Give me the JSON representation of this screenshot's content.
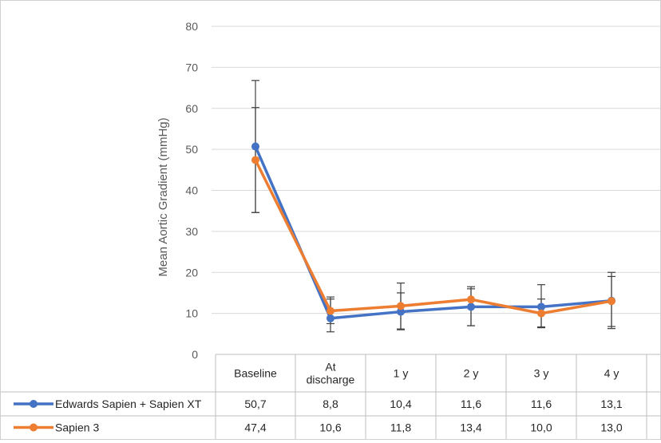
{
  "chart_data": {
    "type": "line",
    "title": "",
    "ylabel": "Mean Aortic Gradient (mmHg)",
    "xlabel": "",
    "ylim": [
      0,
      80
    ],
    "yticks": [
      0,
      10,
      20,
      30,
      40,
      50,
      60,
      70,
      80
    ],
    "grid": true,
    "legend": "data-table-left",
    "categories": [
      "Baseline",
      "At discharge",
      "1 y",
      "2 y",
      "3 y",
      "4 y"
    ],
    "category_lines": [
      [
        "Baseline"
      ],
      [
        "At",
        "discharge"
      ],
      [
        "1 y"
      ],
      [
        "2 y"
      ],
      [
        "3 y"
      ],
      [
        "4 y"
      ]
    ],
    "series": [
      {
        "name": "Edwards Sapien + Sapien XT",
        "color": "#4472c4",
        "values": [
          50.7,
          8.8,
          10.4,
          11.6,
          11.6,
          13.1
        ],
        "labels": [
          "50,7",
          "8,8",
          "10,4",
          "11,6",
          "11,6",
          "13,1"
        ],
        "err_low": [
          34.6,
          7.5,
          6.2,
          7.0,
          6.5,
          6.3
        ],
        "err_high": [
          66.8,
          14.0,
          17.4,
          16.5,
          17.0,
          20.0
        ]
      },
      {
        "name": "Sapien 3",
        "color": "#ed7d31",
        "values": [
          47.4,
          10.6,
          11.8,
          13.4,
          10.0,
          13.0
        ],
        "labels": [
          "47,4",
          "10,6",
          "11,8",
          "13,4",
          "10,0",
          "13,0"
        ],
        "err_low": [
          34.6,
          5.5,
          6.0,
          7.0,
          6.7,
          6.8
        ],
        "err_high": [
          60.2,
          13.5,
          15.0,
          16.0,
          13.5,
          19.0
        ]
      }
    ]
  }
}
